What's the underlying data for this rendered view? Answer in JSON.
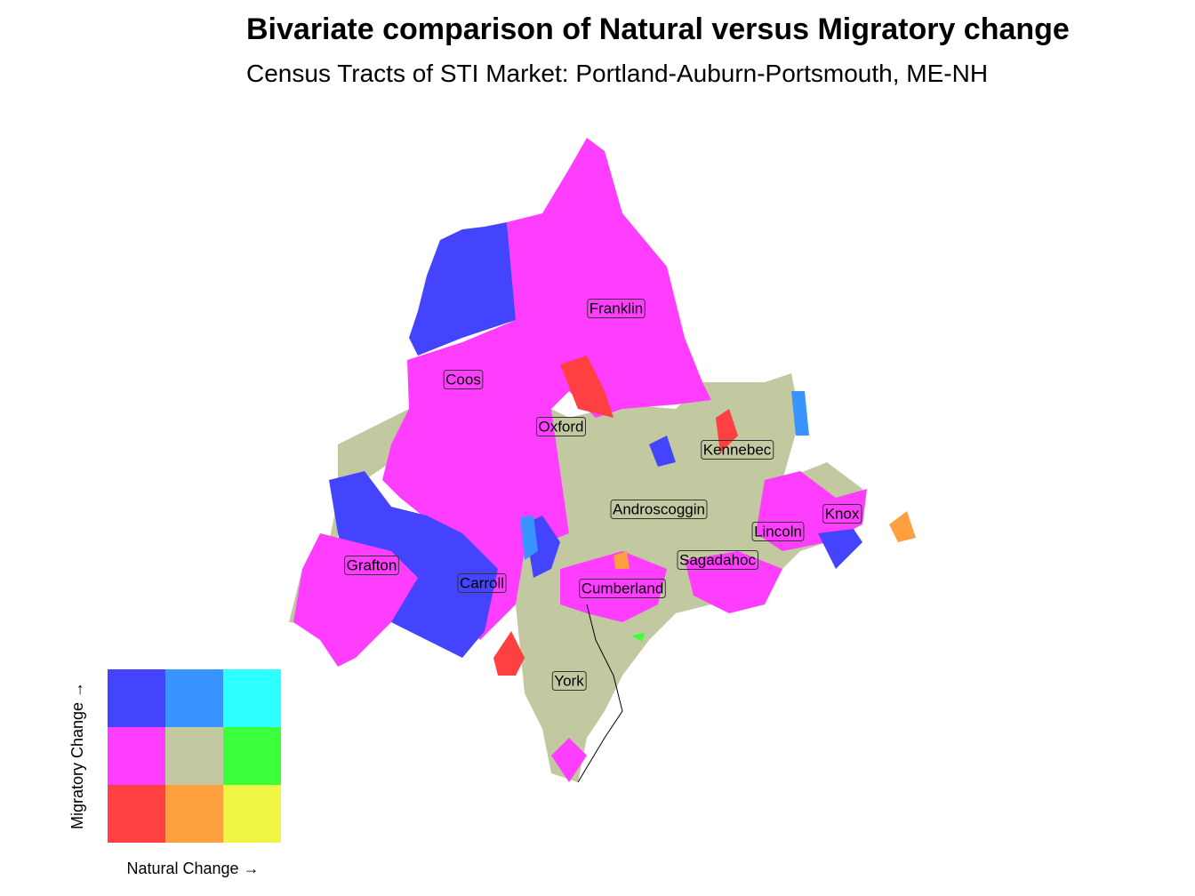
{
  "title": "Bivariate comparison of Natural versus Migratory change",
  "subtitle": "Census Tracts of STI Market: Portland-Auburn-Portsmouth, ME-NH",
  "counties": [
    "Franklin",
    "Coos",
    "Oxford",
    "Kennebec",
    "Androscoggin",
    "Knox",
    "Lincoln",
    "Sagadahoc",
    "Grafton",
    "Carroll",
    "Cumberland",
    "York"
  ],
  "legend": {
    "x_label": "Natural Change →",
    "y_label": "Migratory Change →",
    "colors": [
      [
        "#4444ff",
        "#3a94ff",
        "#2effff"
      ],
      [
        "#ff3dff",
        "#c2c9a0",
        "#3aff3a"
      ],
      [
        "#ff4040",
        "#ffa040",
        "#f0f545"
      ]
    ]
  }
}
